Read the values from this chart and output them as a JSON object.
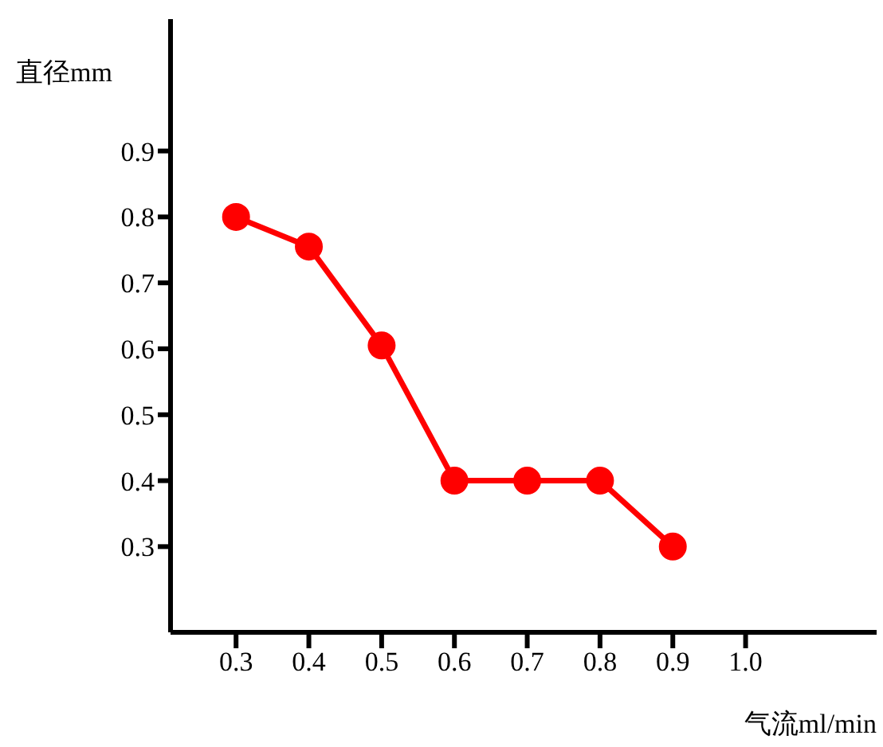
{
  "chart_data": {
    "type": "line",
    "xlabel": "气流ml/min",
    "ylabel": "直径mm",
    "x": [
      0.3,
      0.4,
      0.5,
      0.6,
      0.7,
      0.8,
      0.9
    ],
    "series": [
      {
        "color": "#ff0000",
        "values": [
          0.8,
          0.755,
          0.605,
          0.4,
          0.4,
          0.4,
          0.3
        ]
      }
    ],
    "xlim": [
      0.21,
      1.18
    ],
    "xticks": [
      0.3,
      0.4,
      0.5,
      0.6,
      0.7,
      0.8,
      0.9,
      {
        "value": 1,
        "label": "1.0"
      }
    ],
    "ylim": [
      0.17,
      1.1
    ],
    "yticks": [
      0.3,
      0.4,
      0.5,
      0.6,
      0.7,
      0.8,
      0.9
    ],
    "grid": false,
    "legend": false,
    "marker": "circle",
    "line_style": "solid"
  }
}
